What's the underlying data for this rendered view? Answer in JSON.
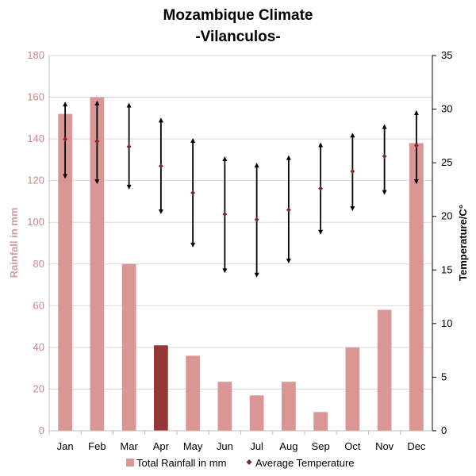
{
  "chart_data": {
    "type": "bar",
    "title": "Mozambique Climate",
    "subtitle": "-Vilanculos-",
    "categories": [
      "Jan",
      "Feb",
      "Mar",
      "Apr",
      "May",
      "Jun",
      "Jul",
      "Aug",
      "Sep",
      "Oct",
      "Nov",
      "Dec"
    ],
    "ylabel": "Rainfall in mm",
    "y2label": "Temperature/C°",
    "ylim": [
      0,
      180
    ],
    "y2lim": [
      0,
      35
    ],
    "yticks": [
      0,
      20,
      40,
      60,
      80,
      100,
      120,
      140,
      160,
      180
    ],
    "y2ticks": [
      0,
      5,
      10,
      15,
      20,
      25,
      30,
      35
    ],
    "grid": true,
    "legend_position": "bottom",
    "highlight_index": 3,
    "series": [
      {
        "name": "Total Rainfall in mm",
        "type": "bar",
        "axis": "left",
        "color": "#d99694",
        "highlight_color": "#953735",
        "values": [
          152,
          160,
          80,
          41,
          36,
          23.5,
          17,
          23.5,
          9,
          40,
          58,
          138
        ]
      },
      {
        "name": "Average Temperature",
        "type": "range",
        "axis": "right",
        "color": "#000000",
        "marker_color": "#7f2b2b",
        "avg": [
          27.2,
          27,
          26.5,
          24.7,
          22.2,
          20.2,
          19.7,
          20.6,
          22.6,
          24.2,
          25.6,
          26.6
        ],
        "min": [
          23.5,
          23,
          22.5,
          20.2,
          17.1,
          14.7,
          14.3,
          15.6,
          18.3,
          20.5,
          22,
          23
        ],
        "max": [
          30.7,
          30.8,
          30.6,
          29.2,
          27.3,
          25.6,
          25,
          25.7,
          26.9,
          27.8,
          28.6,
          29.9
        ]
      }
    ]
  }
}
